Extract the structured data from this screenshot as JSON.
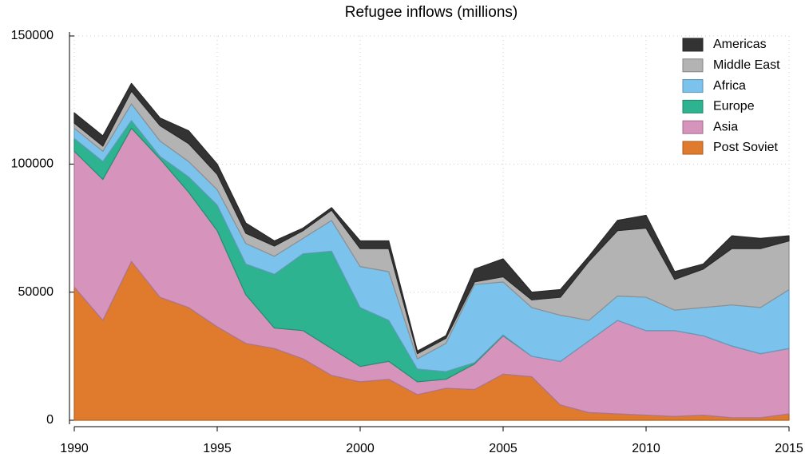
{
  "chart_data": {
    "type": "stacked_area",
    "title": "Refugee inflows (millions)",
    "x": [
      1990,
      1991,
      1992,
      1993,
      1994,
      1995,
      1996,
      1997,
      1998,
      1999,
      2000,
      2001,
      2002,
      2003,
      2004,
      2005,
      2006,
      2007,
      2008,
      2009,
      2010,
      2011,
      2012,
      2013,
      2014,
      2015
    ],
    "series": [
      {
        "name": "Post Soviet",
        "color": "#e07b2e",
        "values": [
          52000,
          39000,
          62000,
          48000,
          44000,
          36500,
          30000,
          28000,
          24000,
          17500,
          15000,
          16000,
          10000,
          12500,
          12000,
          18000,
          17000,
          6000,
          3000,
          2500,
          2000,
          1500,
          2000,
          1000,
          1000,
          2500
        ]
      },
      {
        "name": "Asia",
        "color": "#d693bb",
        "values": [
          53000,
          55000,
          52000,
          54000,
          45000,
          37500,
          19000,
          8000,
          11000,
          10500,
          6000,
          7000,
          5000,
          3500,
          10000,
          15000,
          8000,
          17000,
          28000,
          36500,
          33000,
          33500,
          31000,
          28000,
          25000,
          25500
        ]
      },
      {
        "name": "Europe",
        "color": "#2db38f",
        "values": [
          5000,
          7000,
          3000,
          1000,
          6000,
          10000,
          12000,
          21000,
          30000,
          38000,
          23000,
          16000,
          5000,
          3000,
          500,
          300,
          0,
          0,
          0,
          0,
          0,
          0,
          0,
          0,
          0,
          0
        ]
      },
      {
        "name": "Africa",
        "color": "#7bc3ed",
        "values": [
          4000,
          4000,
          6500,
          6000,
          6000,
          6000,
          8000,
          7000,
          6000,
          12000,
          16000,
          19000,
          4000,
          11000,
          30500,
          20700,
          19000,
          18000,
          8000,
          9500,
          13000,
          8000,
          11000,
          16000,
          18000,
          23000
        ]
      },
      {
        "name": "Middle East",
        "color": "#b3b3b3",
        "values": [
          2000,
          2000,
          5000,
          6000,
          7000,
          6000,
          4000,
          4000,
          3000,
          4000,
          7000,
          9000,
          2000,
          2000,
          1000,
          2000,
          3000,
          7000,
          23000,
          25500,
          27000,
          12000,
          15000,
          22000,
          23000,
          19000
        ]
      },
      {
        "name": "Americas",
        "color": "#333333",
        "values": [
          4000,
          4000,
          3000,
          3000,
          5000,
          4000,
          4000,
          2000,
          1000,
          1000,
          3000,
          3000,
          1000,
          1000,
          5000,
          7000,
          3000,
          3000,
          2000,
          4000,
          5000,
          3000,
          2000,
          5000,
          4000,
          2000
        ]
      }
    ],
    "xlim": [
      1990,
      2015
    ],
    "xticks": [
      1990,
      1995,
      2000,
      2005,
      2010,
      2015
    ],
    "ylim": [
      0,
      150000
    ],
    "yticks": [
      0,
      50000,
      100000,
      150000
    ],
    "grid": true,
    "legend": "top-right"
  }
}
